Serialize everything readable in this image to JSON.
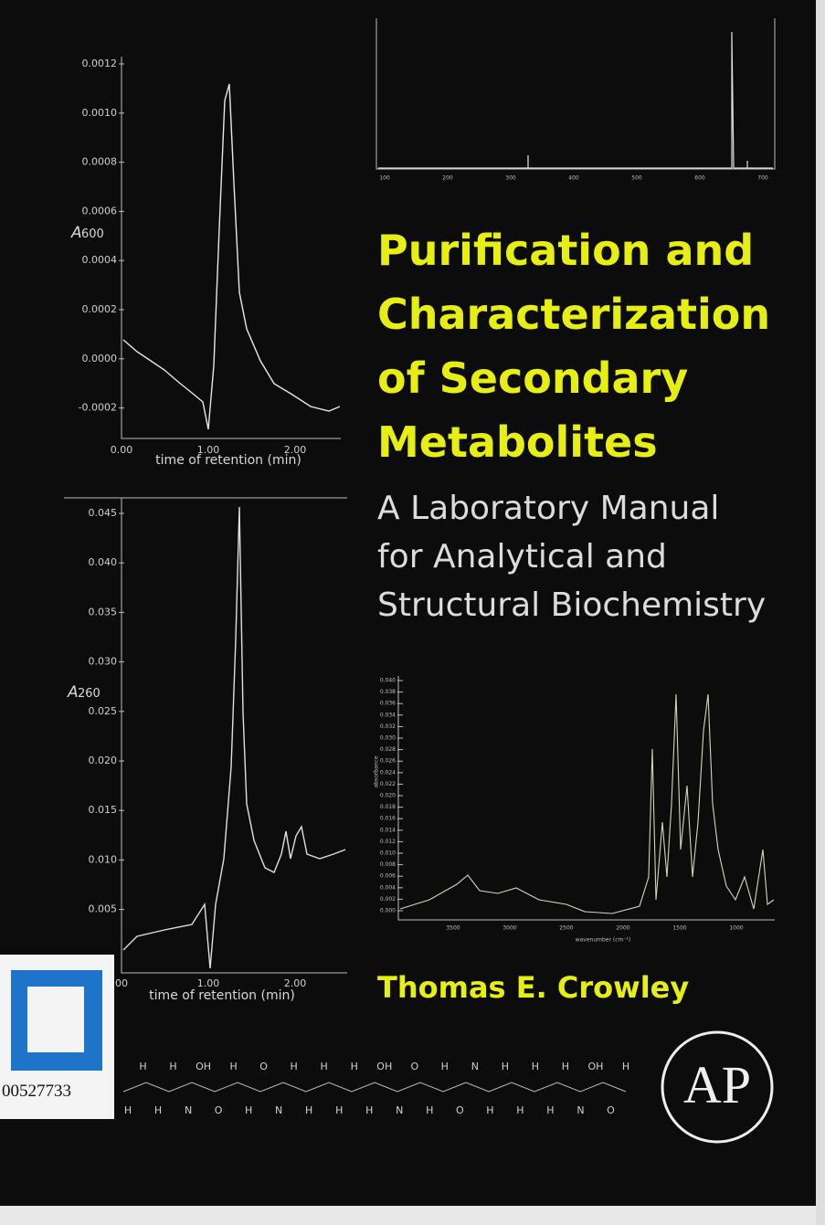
{
  "cover": {
    "title_lines": [
      "Purification and",
      "Characterization",
      "of Secondary",
      "Metabolites"
    ],
    "subtitle_lines": [
      "A Laboratory Manual",
      "for Analytical and",
      "Structural Biochemistry"
    ],
    "author": "Thomas E. Crowley",
    "library_code": "00527733",
    "publisher_logo": "AP"
  },
  "plots": [
    {
      "y_symbol": "A",
      "y_subscript": "600",
      "yticks": [
        "0.0012",
        "0.0010",
        "0.0008",
        "0.0006",
        "0.0004",
        "0.0002",
        "0.0000",
        "-0.0002"
      ],
      "xticks": [
        "0.00",
        "1.00",
        "2.00"
      ],
      "xlabel": "time of retention (min)"
    },
    {
      "xticks": [
        "100",
        "200",
        "300",
        "400",
        "500",
        "600",
        "700"
      ]
    },
    {
      "y_symbol": "A",
      "y_subscript": "260",
      "yticks": [
        "0.045",
        "0.040",
        "0.035",
        "0.030",
        "0.025",
        "0.020",
        "0.015",
        "0.010",
        "0.005"
      ],
      "xticks": [
        "00",
        "1.00",
        "2.00"
      ],
      "xlabel": "time of retention (min)"
    },
    {
      "ylabel": "absorbance",
      "yticks": [
        "0.040",
        "0.038",
        "0.036",
        "0.034",
        "0.032",
        "0.030",
        "0.028",
        "0.026",
        "0.024",
        "0.022",
        "0.020",
        "0.018",
        "0.016",
        "0.014",
        "0.012",
        "0.010",
        "0.008",
        "0.006",
        "0.004",
        "0.002",
        "0.000"
      ],
      "xticks": [
        "3500",
        "3000",
        "2500",
        "2000",
        "1500",
        "1000"
      ],
      "xlabel": "wavenumber (cm⁻¹)"
    }
  ],
  "molecule": {
    "atoms": [
      "H",
      "H",
      "H",
      "H",
      "N",
      "OH",
      "O",
      "H",
      "H",
      "O",
      "N",
      "H",
      "H",
      "H",
      "H",
      "H",
      "H",
      "OH",
      "N",
      "O",
      "H",
      "H",
      "O",
      "N",
      "H",
      "H",
      "H",
      "H",
      "H",
      "H",
      "N",
      "OH",
      "O",
      "H"
    ]
  }
}
